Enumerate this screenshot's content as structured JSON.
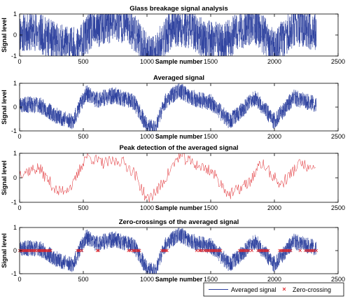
{
  "figure": {
    "colors": {
      "signal": "#2b3f9e",
      "peak": "#e0262b",
      "zero_cross": "#e0262b",
      "axis": "#000000"
    }
  },
  "chart_data": [
    {
      "type": "line",
      "title": "Glass breakage signal analysis",
      "xlabel": "Sample number",
      "ylabel": "Signal level",
      "xlim": [
        0,
        2500
      ],
      "ylim": [
        -1,
        1
      ],
      "xticks": [
        "0",
        "500",
        "1000",
        "1500",
        "2000",
        "2500"
      ],
      "yticks": [
        "-1",
        "0",
        "1"
      ],
      "signal": {
        "samples": 2330,
        "noise": 0.95,
        "trend": [
          [
            0,
            0.1
          ],
          [
            120,
            0.2
          ],
          [
            300,
            -0.4
          ],
          [
            450,
            -0.6
          ],
          [
            560,
            0.2
          ],
          [
            700,
            0.5
          ],
          [
            850,
            0.6
          ],
          [
            1000,
            -0.9
          ],
          [
            1050,
            -1.0
          ],
          [
            1200,
            0.4
          ],
          [
            1350,
            0.3
          ],
          [
            1450,
            -0.2
          ],
          [
            1600,
            -0.4
          ],
          [
            1750,
            0.3
          ],
          [
            1850,
            0.5
          ],
          [
            2000,
            -0.7
          ],
          [
            2150,
            0.4
          ],
          [
            2330,
            0.2
          ]
        ]
      },
      "series": [
        {
          "values_shape": "dense raw signal, amplitude spanning -1 to 1"
        }
      ]
    },
    {
      "type": "line",
      "title": "Averaged signal",
      "xlabel": "Sample number",
      "ylabel": "Signal level",
      "xlim": [
        0,
        2500
      ],
      "ylim": [
        -1,
        1
      ],
      "xticks": [
        "0",
        "500",
        "1000",
        "1500",
        "2000",
        "2500"
      ],
      "yticks": [
        "-1",
        "0",
        "1"
      ],
      "signal": {
        "samples": 2330,
        "noise": 0.35,
        "trend": [
          [
            0,
            0.1
          ],
          [
            150,
            0.1
          ],
          [
            300,
            -0.4
          ],
          [
            420,
            -0.6
          ],
          [
            520,
            0.6
          ],
          [
            600,
            0.3
          ],
          [
            750,
            0.5
          ],
          [
            900,
            0.2
          ],
          [
            1000,
            -0.8
          ],
          [
            1060,
            -0.9
          ],
          [
            1150,
            0.3
          ],
          [
            1250,
            0.7
          ],
          [
            1400,
            0.3
          ],
          [
            1500,
            0.2
          ],
          [
            1650,
            -0.6
          ],
          [
            1750,
            -0.1
          ],
          [
            1850,
            0.4
          ],
          [
            2000,
            -0.6
          ],
          [
            2150,
            0.4
          ],
          [
            2330,
            0.1
          ]
        ]
      },
      "series": [
        {
          "values_shape": "averaged signal, amplitude spanning -0.9 to 1"
        }
      ]
    },
    {
      "type": "line",
      "title": "Peak detection of the averaged signal",
      "xlabel": "Sample number",
      "ylabel": "Signal level",
      "xlim": [
        0,
        2500
      ],
      "ylim": [
        -1,
        1
      ],
      "xticks": [
        "0",
        "500",
        "1000",
        "1500",
        "2000",
        "2500"
      ],
      "yticks": [
        "-1",
        "0",
        "1"
      ],
      "signal": {
        "samples": 380,
        "noise": 0.25,
        "trend": [
          [
            0,
            0.2
          ],
          [
            150,
            0.4
          ],
          [
            300,
            -0.6
          ],
          [
            420,
            -0.3
          ],
          [
            520,
            0.9
          ],
          [
            650,
            0.6
          ],
          [
            800,
            0.7
          ],
          [
            900,
            0.2
          ],
          [
            1000,
            -0.9
          ],
          [
            1100,
            -0.4
          ],
          [
            1250,
            0.9
          ],
          [
            1400,
            0.5
          ],
          [
            1500,
            0.3
          ],
          [
            1650,
            -0.7
          ],
          [
            1800,
            -0.2
          ],
          [
            1900,
            0.6
          ],
          [
            2050,
            -0.3
          ],
          [
            2200,
            0.6
          ],
          [
            2330,
            0.2
          ]
        ]
      },
      "series": [
        {
          "values_shape": "peak envelope in red, spanning -0.9 to 1"
        }
      ]
    },
    {
      "type": "line",
      "title": "Zero-crossings of the averaged signal",
      "xlabel": "Sample number",
      "ylabel": "Signal level",
      "xlim": [
        0,
        2500
      ],
      "ylim": [
        -1,
        1
      ],
      "xticks": [
        "0",
        "500",
        "1000",
        "1500",
        "2000",
        "2500"
      ],
      "yticks": [
        "-1",
        "0",
        "1"
      ],
      "signal": {
        "samples": 2330,
        "noise": 0.35,
        "trend": [
          [
            0,
            0.1
          ],
          [
            150,
            0.1
          ],
          [
            300,
            -0.4
          ],
          [
            420,
            -0.6
          ],
          [
            520,
            0.6
          ],
          [
            600,
            0.3
          ],
          [
            750,
            0.5
          ],
          [
            900,
            0.2
          ],
          [
            1000,
            -0.8
          ],
          [
            1060,
            -0.9
          ],
          [
            1150,
            0.3
          ],
          [
            1250,
            0.7
          ],
          [
            1400,
            0.3
          ],
          [
            1500,
            0.2
          ],
          [
            1650,
            -0.6
          ],
          [
            1750,
            -0.1
          ],
          [
            1850,
            0.4
          ],
          [
            2000,
            -0.6
          ],
          [
            2150,
            0.4
          ],
          [
            2330,
            0.1
          ]
        ]
      },
      "zero_crossings": {
        "y": 0,
        "marker": "x"
      },
      "series": [
        {
          "name": "Averaged signal"
        },
        {
          "name": "Zero-crossing"
        }
      ]
    }
  ],
  "legend": {
    "placement": "bottom-right",
    "items": [
      {
        "label": "Averaged signal",
        "color": "#2b3f9e",
        "marker": "line"
      },
      {
        "label": "Zero-crossing",
        "color": "#e0262b",
        "marker": "x"
      }
    ]
  }
}
